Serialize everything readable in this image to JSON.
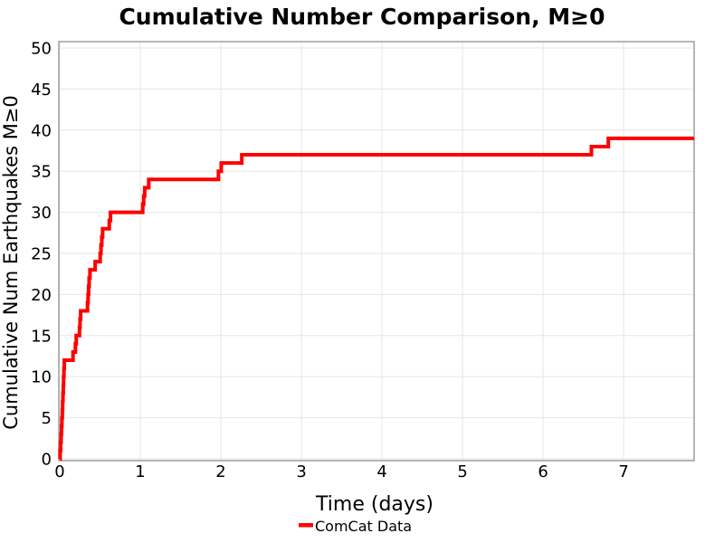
{
  "figure": {
    "background": "#ffffff",
    "text_color": "#000000",
    "grid_color": "#e6e6e6",
    "spine_color": "#a3a3a3"
  },
  "legend": {
    "entries": [
      {
        "label": "ComCat Data",
        "color": "#ff0000",
        "marker": "line"
      }
    ],
    "position": "bottom-center"
  },
  "chart_data": {
    "type": "line",
    "subtype": "cumulative-step",
    "title": "Cumulative Number Comparison, M≥0",
    "xlabel": "Time (days)",
    "ylabel": "Cumulative Num Earthquakes M≥0",
    "xlim": [
      0,
      7.875
    ],
    "ylim": [
      0,
      50
    ],
    "x_ticks": [
      0,
      1,
      2,
      3,
      4,
      5,
      6,
      7
    ],
    "y_ticks": [
      0,
      5,
      10,
      15,
      20,
      25,
      30,
      35,
      40,
      45,
      50
    ],
    "grid": true,
    "legend_position": "bottom",
    "series": [
      {
        "name": "ComCat Data",
        "color": "#ff0000",
        "line_width": 4,
        "style": "step-post",
        "start": [
          0,
          0
        ],
        "end_x": 7.875,
        "final_count": 39,
        "events": [
          [
            0.005,
            1
          ],
          [
            0.011,
            2
          ],
          [
            0.017,
            3
          ],
          [
            0.022,
            4
          ],
          [
            0.027,
            5
          ],
          [
            0.032,
            6
          ],
          [
            0.036,
            7
          ],
          [
            0.04,
            8
          ],
          [
            0.044,
            9
          ],
          [
            0.048,
            10
          ],
          [
            0.052,
            11
          ],
          [
            0.057,
            12
          ],
          [
            0.165,
            13
          ],
          [
            0.195,
            14
          ],
          [
            0.205,
            15
          ],
          [
            0.245,
            16
          ],
          [
            0.252,
            17
          ],
          [
            0.26,
            18
          ],
          [
            0.345,
            19
          ],
          [
            0.352,
            20
          ],
          [
            0.358,
            21
          ],
          [
            0.365,
            22
          ],
          [
            0.375,
            23
          ],
          [
            0.44,
            24
          ],
          [
            0.502,
            25
          ],
          [
            0.512,
            26
          ],
          [
            0.522,
            27
          ],
          [
            0.532,
            28
          ],
          [
            0.615,
            29
          ],
          [
            0.63,
            30
          ],
          [
            1.03,
            31
          ],
          [
            1.042,
            32
          ],
          [
            1.055,
            33
          ],
          [
            1.105,
            34
          ],
          [
            1.97,
            35
          ],
          [
            2.005,
            36
          ],
          [
            2.26,
            37
          ],
          [
            6.6,
            38
          ],
          [
            6.81,
            39
          ]
        ]
      }
    ]
  }
}
